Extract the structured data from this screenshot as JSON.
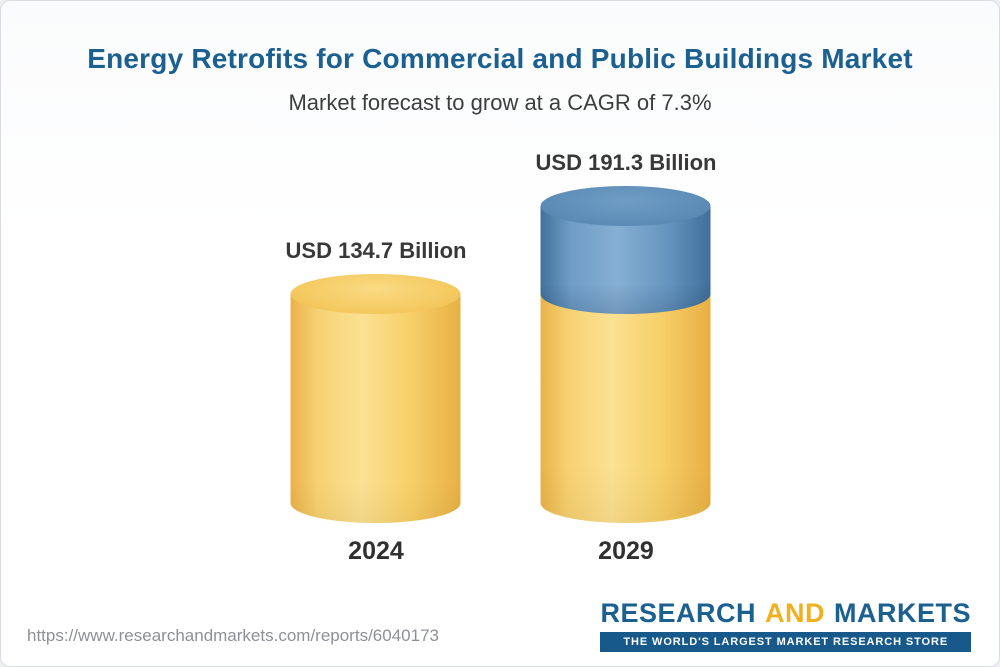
{
  "header": {
    "title": "Energy Retrofits for Commercial and Public Buildings Market",
    "subtitle": "Market forecast to grow at a CAGR of 7.3%"
  },
  "chart_data": {
    "type": "bar",
    "title": "Energy Retrofits for Commercial and Public Buildings Market",
    "subtitle": "Market forecast to grow at a CAGR of 7.3%",
    "cagr_percent": 7.3,
    "categories": [
      "2024",
      "2029"
    ],
    "values": [
      134.7,
      191.3
    ],
    "value_labels": [
      "USD 134.7 Billion",
      "USD 191.3 Billion"
    ],
    "unit": "USD Billion",
    "xlabel": "",
    "ylabel": "",
    "ylim": [
      0,
      200
    ],
    "grid": false,
    "legend": "none",
    "bar_style": "3d-cylinder",
    "colors": {
      "base_segment": "#f6cf68",
      "growth_segment": "#5c8cb6",
      "title_text": "#1c6090",
      "label_text": "#383838"
    }
  },
  "footer": {
    "url": "https://www.researchandmarkets.com/reports/6040173",
    "logo": {
      "research": "RESEARCH",
      "and": "AND",
      "markets": "MARKETS",
      "tagline": "THE WORLD'S LARGEST MARKET RESEARCH STORE"
    }
  }
}
